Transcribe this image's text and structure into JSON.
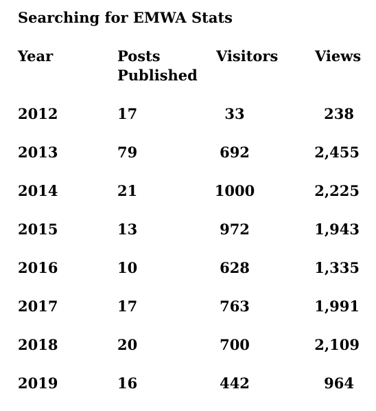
{
  "title": "Searching for EMWA Stats",
  "headers": {
    "year": "Year",
    "posts_line1": "Posts",
    "posts_line2": "Published",
    "visitors": "Visitors",
    "views": "Views"
  },
  "rows": [
    {
      "year": "2012",
      "posts": "17",
      "visitors": "33",
      "views": "238"
    },
    {
      "year": "2013",
      "posts": "79",
      "visitors": "692",
      "views": "2,455"
    },
    {
      "year": "2014",
      "posts": "21",
      "visitors": "1000",
      "views": "2,225"
    },
    {
      "year": "2015",
      "posts": "13",
      "visitors": "972",
      "views": "1,943"
    },
    {
      "year": "2016",
      "posts": "10",
      "visitors": "628",
      "views": "1,335"
    },
    {
      "year": "2017",
      "posts": "17",
      "visitors": "763",
      "views": "1,991"
    },
    {
      "year": "2018",
      "posts": "20",
      "visitors": "700",
      "views": "2,109"
    },
    {
      "year": "2019",
      "posts": "16",
      "visitors": "442",
      "views": "964"
    }
  ]
}
